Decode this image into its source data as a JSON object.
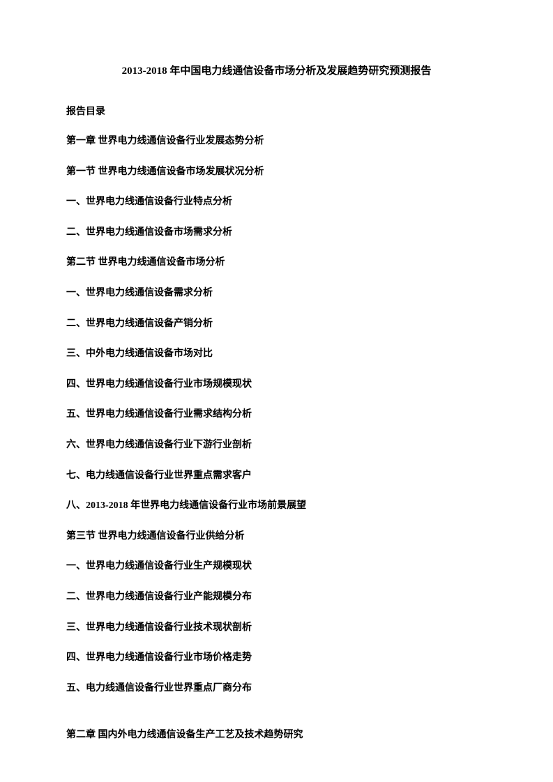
{
  "title": "2013-2018 年中国电力线通信设备市场分析及发展趋势研究预测报告",
  "toc_label": "报告目录",
  "items": [
    "第一章 世界电力线通信设备行业发展态势分析",
    "第一节 世界电力线通信设备市场发展状况分析",
    "一、世界电力线通信设备行业特点分析",
    "二、世界电力线通信设备市场需求分析",
    "第二节 世界电力线通信设备市场分析",
    "一、世界电力线通信设备需求分析",
    "二、世界电力线通信设备产销分析",
    "三、中外电力线通信设备市场对比",
    "四、世界电力线通信设备行业市场规模现状",
    "五、世界电力线通信设备行业需求结构分析",
    "六、世界电力线通信设备行业下游行业剖析",
    "七、电力线通信设备行业世界重点需求客户",
    "八、2013-2018 年世界电力线通信设备行业市场前景展望",
    "第三节 世界电力线通信设备行业供给分析",
    "一、世界电力线通信设备行业生产规模现状",
    "二、世界电力线通信设备行业产能规模分布",
    "三、世界电力线通信设备行业技术现状剖析",
    "四、世界电力线通信设备行业市场价格走势",
    "五、电力线通信设备行业世界重点厂商分布"
  ],
  "chapter2": "第二章 国内外电力线通信设备生产工艺及技术趋势研究"
}
